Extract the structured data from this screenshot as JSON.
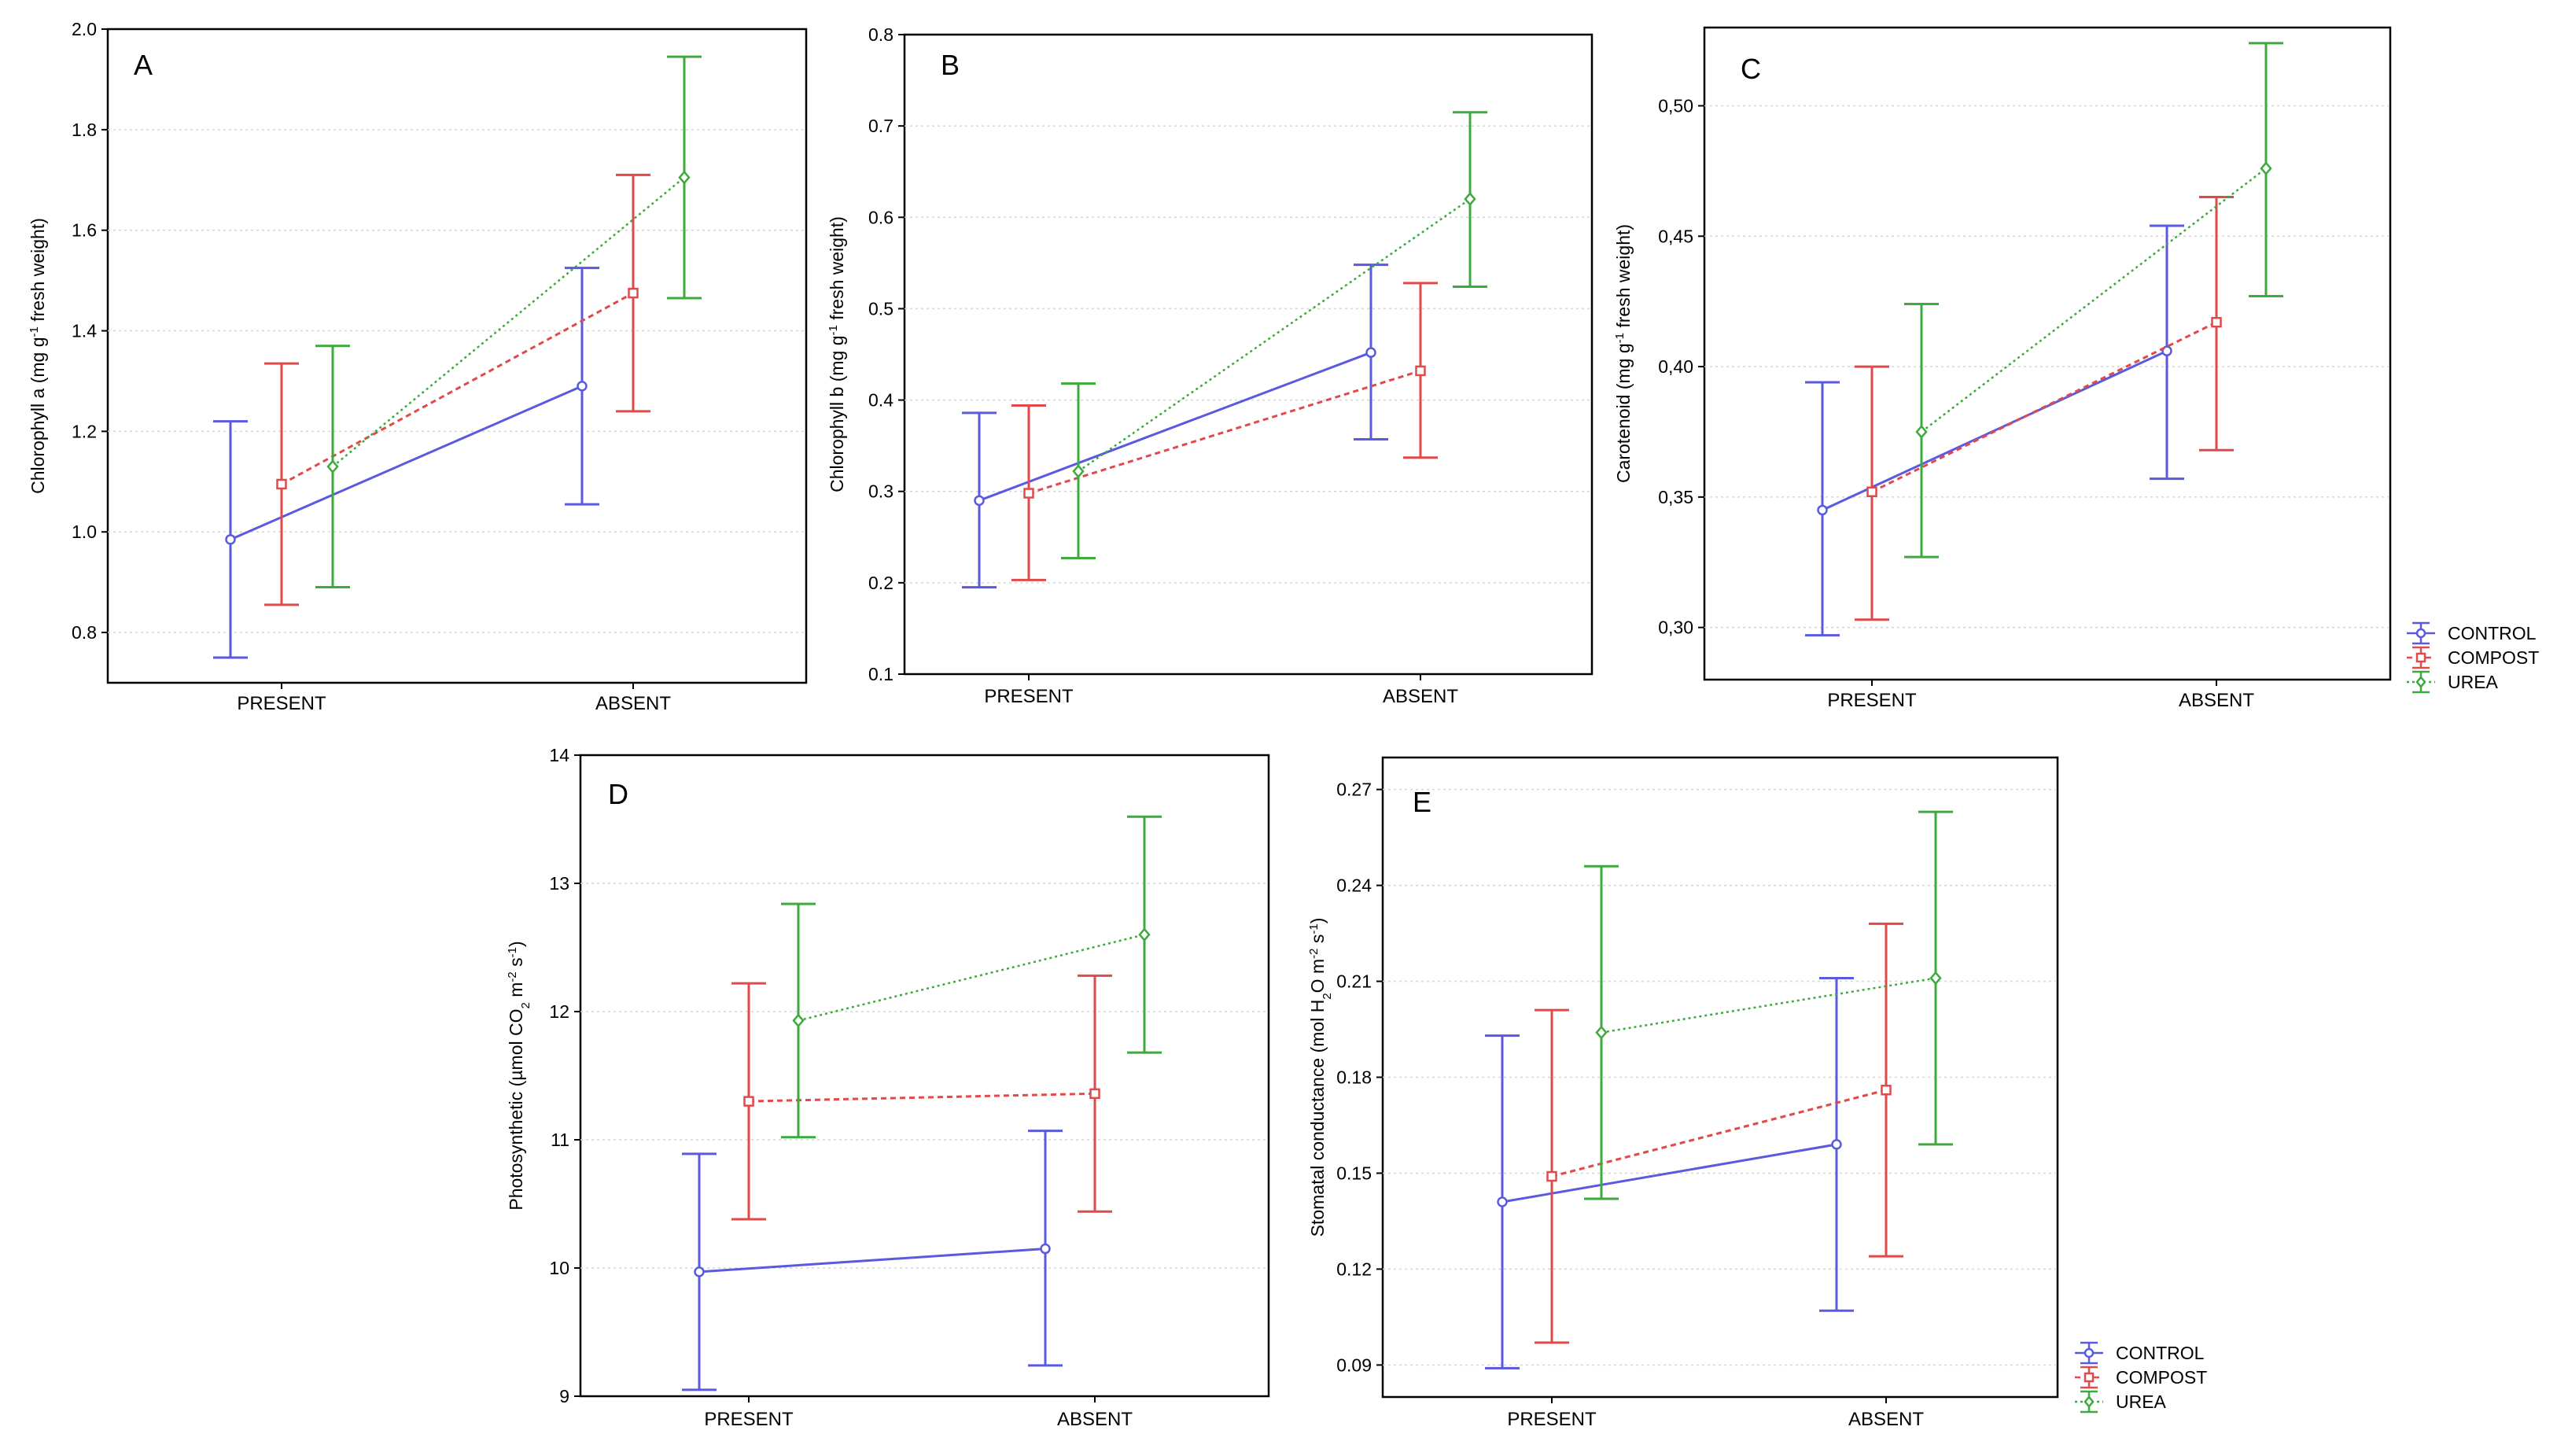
{
  "chart_data": [
    {
      "panel": "A",
      "type": "line",
      "ylabel": {
        "pre": "Chlorophyll a (mg g",
        "sup": "-1",
        "post": " fresh weight)"
      },
      "categories": [
        "PRESENT",
        "ABSENT"
      ],
      "ylim": [
        0.7,
        2.0
      ],
      "yticks": [
        0.8,
        1.0,
        1.2,
        1.4,
        1.6,
        1.8,
        2.0
      ],
      "ytick_labels": [
        "0.8",
        "1.0",
        "1.2",
        "1.4",
        "1.6",
        "1.8",
        "2.0"
      ],
      "grid": true,
      "series": [
        {
          "name": "CONTROL",
          "values": [
            0.985,
            1.29
          ],
          "lower": [
            0.75,
            1.055
          ],
          "upper": [
            1.22,
            1.525
          ]
        },
        {
          "name": "COMPOST",
          "values": [
            1.095,
            1.475
          ],
          "lower": [
            0.855,
            1.24
          ],
          "upper": [
            1.335,
            1.71
          ]
        },
        {
          "name": "UREA",
          "values": [
            1.13,
            1.705
          ],
          "lower": [
            0.89,
            1.465
          ],
          "upper": [
            1.37,
            1.945
          ]
        }
      ]
    },
    {
      "panel": "B",
      "type": "line",
      "ylabel": {
        "pre": "Chlorophyll b (mg g",
        "sup": "-1",
        "post": " fresh weight)"
      },
      "categories": [
        "PRESENT",
        "ABSENT"
      ],
      "ylim": [
        0.1,
        0.8
      ],
      "yticks": [
        0.1,
        0.2,
        0.3,
        0.4,
        0.5,
        0.6,
        0.7,
        0.8
      ],
      "ytick_labels": [
        "0.1",
        "0.2",
        "0.3",
        "0.4",
        "0.5",
        "0.6",
        "0.7",
        "0.8"
      ],
      "grid": true,
      "series": [
        {
          "name": "CONTROL",
          "values": [
            0.29,
            0.452
          ],
          "lower": [
            0.195,
            0.357
          ],
          "upper": [
            0.386,
            0.548
          ]
        },
        {
          "name": "COMPOST",
          "values": [
            0.298,
            0.432
          ],
          "lower": [
            0.203,
            0.337
          ],
          "upper": [
            0.394,
            0.528
          ]
        },
        {
          "name": "UREA",
          "values": [
            0.322,
            0.62
          ],
          "lower": [
            0.227,
            0.524
          ],
          "upper": [
            0.418,
            0.715
          ]
        }
      ]
    },
    {
      "panel": "C",
      "type": "line",
      "ylabel": {
        "pre": "Carotenoid (mg g",
        "sup": "-1",
        "post": " fresh weight)"
      },
      "categories": [
        "PRESENT",
        "ABSENT"
      ],
      "ylim": [
        0.28,
        0.53
      ],
      "yticks": [
        0.3,
        0.35,
        0.4,
        0.45,
        0.5
      ],
      "ytick_labels": [
        "0,30",
        "0,35",
        "0,40",
        "0,45",
        "0,50"
      ],
      "grid": true,
      "series": [
        {
          "name": "CONTROL",
          "values": [
            0.345,
            0.406
          ],
          "lower": [
            0.297,
            0.357
          ],
          "upper": [
            0.394,
            0.454
          ]
        },
        {
          "name": "COMPOST",
          "values": [
            0.352,
            0.417
          ],
          "lower": [
            0.303,
            0.368
          ],
          "upper": [
            0.4,
            0.465
          ]
        },
        {
          "name": "UREA",
          "values": [
            0.375,
            0.476
          ],
          "lower": [
            0.327,
            0.427
          ],
          "upper": [
            0.424,
            0.524
          ]
        }
      ]
    },
    {
      "panel": "D",
      "type": "line",
      "ylabel": {
        "pre": "Photosynthetic (µmol CO",
        "sub": "2",
        "mid": " m",
        "sup": "-2",
        "mid2": " s",
        "sup2": "-1",
        "post": ")"
      },
      "categories": [
        "PRESENT",
        "ABSENT"
      ],
      "ylim": [
        9,
        14
      ],
      "yticks": [
        9,
        10,
        11,
        12,
        13,
        14
      ],
      "ytick_labels": [
        "9",
        "10",
        "11",
        "12",
        "13",
        "14"
      ],
      "grid": true,
      "series": [
        {
          "name": "CONTROL",
          "values": [
            9.97,
            10.15
          ],
          "lower": [
            9.05,
            9.24
          ],
          "upper": [
            10.89,
            11.07
          ]
        },
        {
          "name": "COMPOST",
          "values": [
            11.3,
            11.36
          ],
          "lower": [
            10.38,
            10.44
          ],
          "upper": [
            12.22,
            12.28
          ]
        },
        {
          "name": "UREA",
          "values": [
            11.93,
            12.6
          ],
          "lower": [
            11.02,
            11.68
          ],
          "upper": [
            12.84,
            13.52
          ]
        }
      ]
    },
    {
      "panel": "E",
      "type": "line",
      "ylabel": {
        "pre": "Stomatal conductance (mol H",
        "sub": "2",
        "mid": "O m",
        "sup": "-2",
        "mid2": " s",
        "sup2": "-1",
        "post": ")"
      },
      "categories": [
        "PRESENT",
        "ABSENT"
      ],
      "ylim": [
        0.08,
        0.28
      ],
      "yticks": [
        0.09,
        0.12,
        0.15,
        0.18,
        0.21,
        0.24,
        0.27
      ],
      "ytick_labels": [
        "0.09",
        "0.12",
        "0.15",
        "0.18",
        "0.21",
        "0.24",
        "0.27"
      ],
      "grid": true,
      "series": [
        {
          "name": "CONTROL",
          "values": [
            0.141,
            0.159
          ],
          "lower": [
            0.089,
            0.107
          ],
          "upper": [
            0.193,
            0.211
          ]
        },
        {
          "name": "COMPOST",
          "values": [
            0.149,
            0.176
          ],
          "lower": [
            0.097,
            0.124
          ],
          "upper": [
            0.201,
            0.228
          ]
        },
        {
          "name": "UREA",
          "values": [
            0.194,
            0.211
          ],
          "lower": [
            0.142,
            0.159
          ],
          "upper": [
            0.246,
            0.263
          ]
        }
      ]
    }
  ],
  "legends": [
    {
      "id": "legend-top",
      "entries": [
        "CONTROL",
        "COMPOST",
        "UREA"
      ]
    },
    {
      "id": "legend-bottom",
      "entries": [
        "CONTROL",
        "COMPOST",
        "UREA"
      ]
    }
  ],
  "colors": {
    "CONTROL": "#5a5ae0",
    "COMPOST": "#e04a4a",
    "UREA": "#3caa3c"
  }
}
